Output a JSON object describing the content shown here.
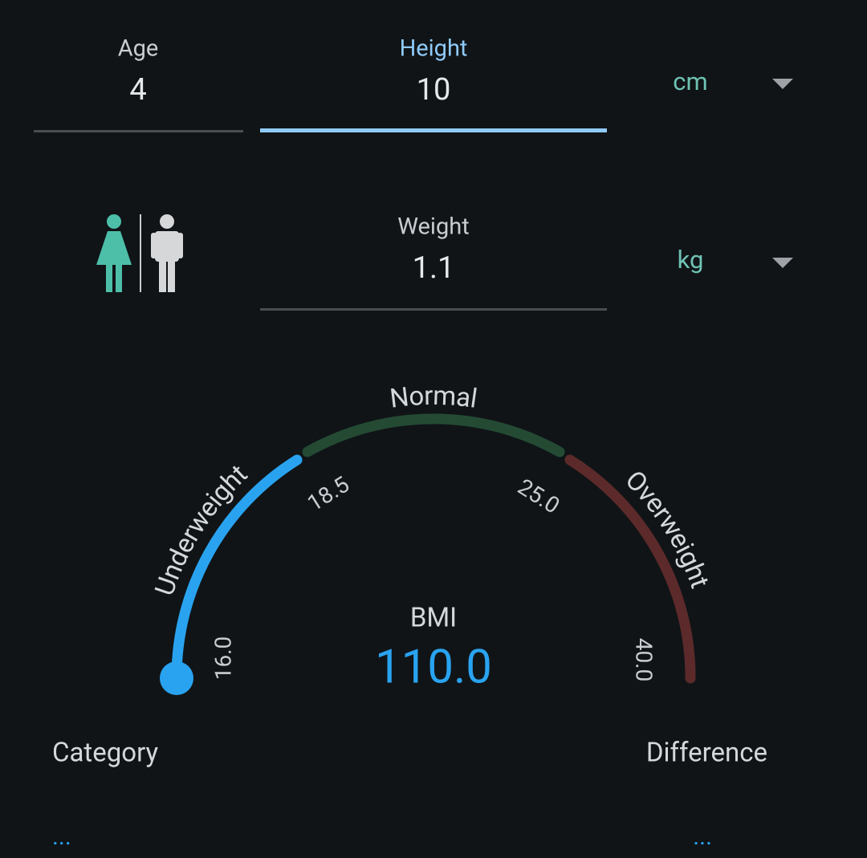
{
  "inputs": {
    "age": {
      "label": "Age",
      "value": "4"
    },
    "height": {
      "label": "Height",
      "value": "10",
      "unit": "cm"
    },
    "weight": {
      "label": "Weight",
      "value": "1.1",
      "unit": "kg"
    }
  },
  "gauge": {
    "zones": [
      "Underweight",
      "Normal",
      "Overweight"
    ],
    "ticks": [
      "16.0",
      "18.5",
      "25.0",
      "40.0"
    ],
    "bmi_label": "BMI",
    "bmi_value": "110.0"
  },
  "results": {
    "category": {
      "label": "Category",
      "value": "..."
    },
    "difference": {
      "label": "Difference",
      "value": "..."
    }
  }
}
